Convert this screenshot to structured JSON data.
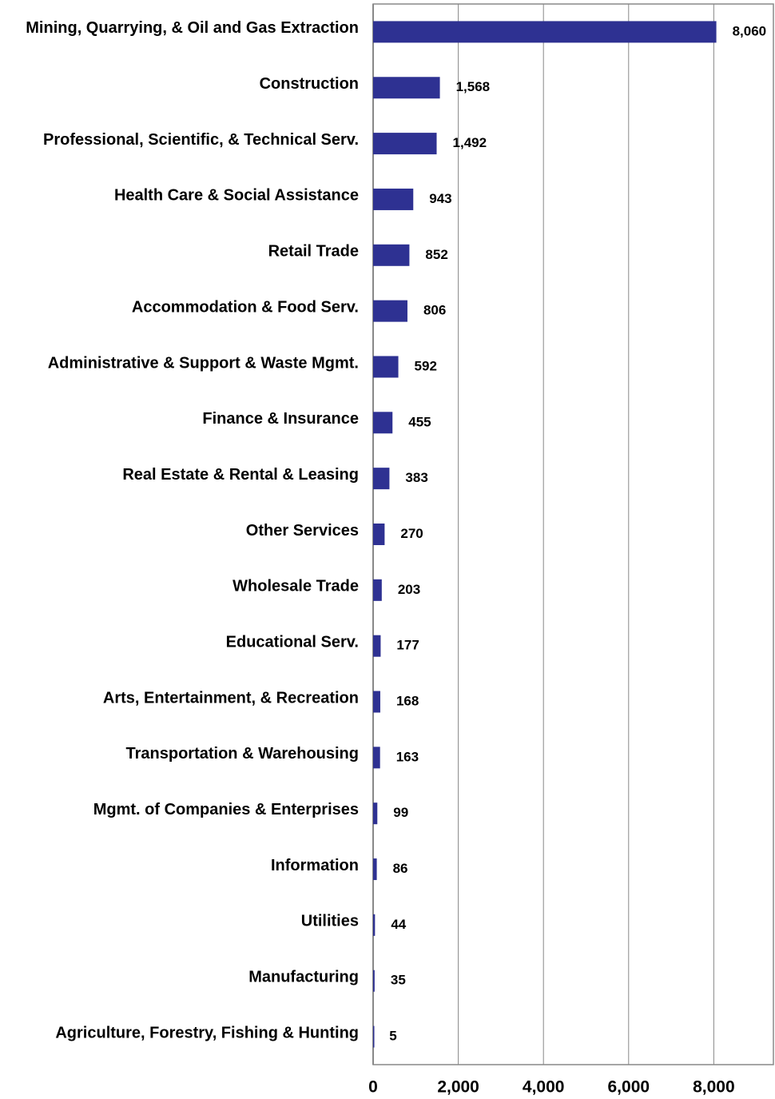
{
  "chart_data": {
    "type": "barh",
    "categories": [
      "Mining, Quarrying, & Oil and Gas Extraction",
      "Construction",
      "Professional, Scientific, & Technical Serv.",
      "Health Care & Social Assistance",
      "Retail Trade",
      "Accommodation & Food Serv.",
      "Administrative & Support & Waste Mgmt.",
      "Finance & Insurance",
      "Real Estate & Rental & Leasing",
      "Other Services",
      "Wholesale Trade",
      "Educational Serv.",
      "Arts, Entertainment, & Recreation",
      "Transportation & Warehousing",
      "Mgmt. of Companies & Enterprises",
      "Information",
      "Utilities",
      "Manufacturing",
      "Agriculture, Forestry, Fishing & Hunting"
    ],
    "values": [
      8060,
      1568,
      1492,
      943,
      852,
      806,
      592,
      455,
      383,
      270,
      203,
      177,
      168,
      163,
      99,
      86,
      44,
      35,
      5
    ],
    "value_labels": [
      "8,060",
      "1,568",
      "1,492",
      "943",
      "852",
      "806",
      "592",
      "455",
      "383",
      "270",
      "203",
      "177",
      "168",
      "163",
      "99",
      "86",
      "44",
      "35",
      "5"
    ],
    "color": "#2e3192",
    "xlim": [
      0,
      9400
    ],
    "xticks": [
      0,
      {
        "value": 2000,
        "label": "2,000"
      },
      {
        "value": 4000,
        "label": "4,000"
      },
      {
        "value": 6000,
        "label": "6,000"
      },
      {
        "value": 8000,
        "label": "8,000"
      }
    ],
    "grid": true
  }
}
